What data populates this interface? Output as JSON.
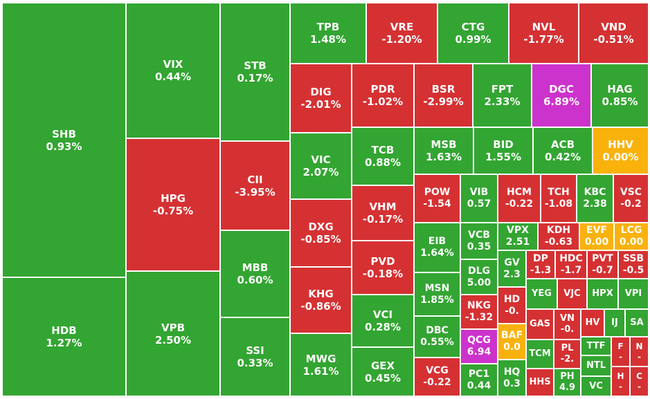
{
  "colors": {
    "up": "#33a532",
    "down": "#d53133",
    "flat": "#f9b20c",
    "ceiling": "#cc33cc"
  },
  "chart_data": {
    "type": "treemap",
    "tiles": [
      {
        "code": "SHB",
        "change": "0.93%",
        "status": "up"
      },
      {
        "code": "HDB",
        "change": "1.27%",
        "status": "up"
      },
      {
        "code": "VIX",
        "change": "0.44%",
        "status": "up"
      },
      {
        "code": "HPG",
        "change": "-0.75%",
        "status": "down"
      },
      {
        "code": "VPB",
        "change": "2.50%",
        "status": "up"
      },
      {
        "code": "STB",
        "change": "0.17%",
        "status": "up"
      },
      {
        "code": "CII",
        "change": "-3.95%",
        "status": "down"
      },
      {
        "code": "MBB",
        "change": "0.60%",
        "status": "up"
      },
      {
        "code": "SSI",
        "change": "0.33%",
        "status": "up"
      },
      {
        "code": "TPB",
        "change": "1.48%",
        "status": "up"
      },
      {
        "code": "VRE",
        "change": "-1.20%",
        "status": "down"
      },
      {
        "code": "CTG",
        "change": "0.99%",
        "status": "up"
      },
      {
        "code": "NVL",
        "change": "-1.77%",
        "status": "down"
      },
      {
        "code": "VND",
        "change": "-0.51%",
        "status": "down"
      },
      {
        "code": "DIG",
        "change": "-2.01%",
        "status": "down"
      },
      {
        "code": "VIC",
        "change": "2.07%",
        "status": "up"
      },
      {
        "code": "DXG",
        "change": "-0.85%",
        "status": "down"
      },
      {
        "code": "KHG",
        "change": "-0.86%",
        "status": "down"
      },
      {
        "code": "MWG",
        "change": "1.61%",
        "status": "up"
      },
      {
        "code": "PDR",
        "change": "-1.02%",
        "status": "down"
      },
      {
        "code": "BSR",
        "change": "-2.99%",
        "status": "down"
      },
      {
        "code": "FPT",
        "change": "2.33%",
        "status": "up"
      },
      {
        "code": "DGC",
        "change": "6.89%",
        "status": "ceiling"
      },
      {
        "code": "HAG",
        "change": "0.85%",
        "status": "up"
      },
      {
        "code": "TCB",
        "change": "0.88%",
        "status": "up"
      },
      {
        "code": "VHM",
        "change": "-0.17%",
        "status": "down"
      },
      {
        "code": "PVD",
        "change": "-0.18%",
        "status": "down"
      },
      {
        "code": "VCI",
        "change": "0.28%",
        "status": "up"
      },
      {
        "code": "GEX",
        "change": "0.45%",
        "status": "up"
      },
      {
        "code": "MSB",
        "change": "1.63%",
        "status": "up"
      },
      {
        "code": "BID",
        "change": "1.55%",
        "status": "up"
      },
      {
        "code": "ACB",
        "change": "0.42%",
        "status": "up"
      },
      {
        "code": "HHV",
        "change": "0.00%",
        "status": "flat"
      },
      {
        "code": "POW",
        "change": "-1.54",
        "status": "down"
      },
      {
        "code": "VIB",
        "change": "0.57",
        "status": "up"
      },
      {
        "code": "HCM",
        "change": "-0.22",
        "status": "down"
      },
      {
        "code": "TCH",
        "change": "-1.08",
        "status": "down"
      },
      {
        "code": "KBC",
        "change": "2.38",
        "status": "up"
      },
      {
        "code": "VSC",
        "change": "-0.2",
        "status": "down"
      },
      {
        "code": "EIB",
        "change": "1.64%",
        "status": "up"
      },
      {
        "code": "MSN",
        "change": "1.85%",
        "status": "up"
      },
      {
        "code": "DBC",
        "change": "0.55%",
        "status": "up"
      },
      {
        "code": "VCG",
        "change": "-0.22",
        "status": "down"
      },
      {
        "code": "VCB",
        "change": "0.35",
        "status": "up"
      },
      {
        "code": "DLG",
        "change": "5.00",
        "status": "up"
      },
      {
        "code": "NKG",
        "change": "-1.32",
        "status": "down"
      },
      {
        "code": "QCG",
        "change": "6.94",
        "status": "ceiling"
      },
      {
        "code": "PC1",
        "change": "0.44",
        "status": "up"
      },
      {
        "code": "VPX",
        "change": "2.51",
        "status": "up"
      },
      {
        "code": "KDH",
        "change": "-0.63",
        "status": "down"
      },
      {
        "code": "EVF",
        "change": "0.00",
        "status": "flat"
      },
      {
        "code": "LCG",
        "change": "0.00",
        "status": "flat"
      },
      {
        "code": "GV",
        "change": "2.3",
        "status": "up"
      },
      {
        "code": "HD",
        "change": "-0.",
        "status": "down"
      },
      {
        "code": "BAF",
        "change": "0.0",
        "status": "flat"
      },
      {
        "code": "HQ",
        "change": "0.3",
        "status": "up"
      },
      {
        "code": "DP",
        "change": "-1.3",
        "status": "down"
      },
      {
        "code": "HDC",
        "change": "-1.7",
        "status": "down"
      },
      {
        "code": "PVT",
        "change": "-0.7",
        "status": "down"
      },
      {
        "code": "SSB",
        "change": "-0.5",
        "status": "down"
      },
      {
        "code": "YEG",
        "change": "",
        "status": "up"
      },
      {
        "code": "VJC",
        "change": "",
        "status": "down"
      },
      {
        "code": "HPX",
        "change": "",
        "status": "up"
      },
      {
        "code": "VPI",
        "change": "",
        "status": "up"
      },
      {
        "code": "GAS",
        "change": "",
        "status": "down"
      },
      {
        "code": "VN",
        "change": "-0.",
        "status": "down"
      },
      {
        "code": "HV",
        "change": "",
        "status": "down"
      },
      {
        "code": "IJ",
        "change": "",
        "status": "up"
      },
      {
        "code": "SA",
        "change": "",
        "status": "up"
      },
      {
        "code": "TCM",
        "change": "",
        "status": "up"
      },
      {
        "code": "PL",
        "change": "-2.",
        "status": "down"
      },
      {
        "code": "TTF",
        "change": "",
        "status": "up"
      },
      {
        "code": "F",
        "change": "-",
        "status": "down"
      },
      {
        "code": "N",
        "change": "-",
        "status": "down"
      },
      {
        "code": "HHS",
        "change": "",
        "status": "down"
      },
      {
        "code": "PH",
        "change": "4.9",
        "status": "up"
      },
      {
        "code": "NTL",
        "change": "",
        "status": "up"
      },
      {
        "code": "VC",
        "change": "",
        "status": "up"
      },
      {
        "code": "H",
        "change": "-",
        "status": "down"
      },
      {
        "code": "C",
        "change": "-",
        "status": "down"
      }
    ]
  }
}
